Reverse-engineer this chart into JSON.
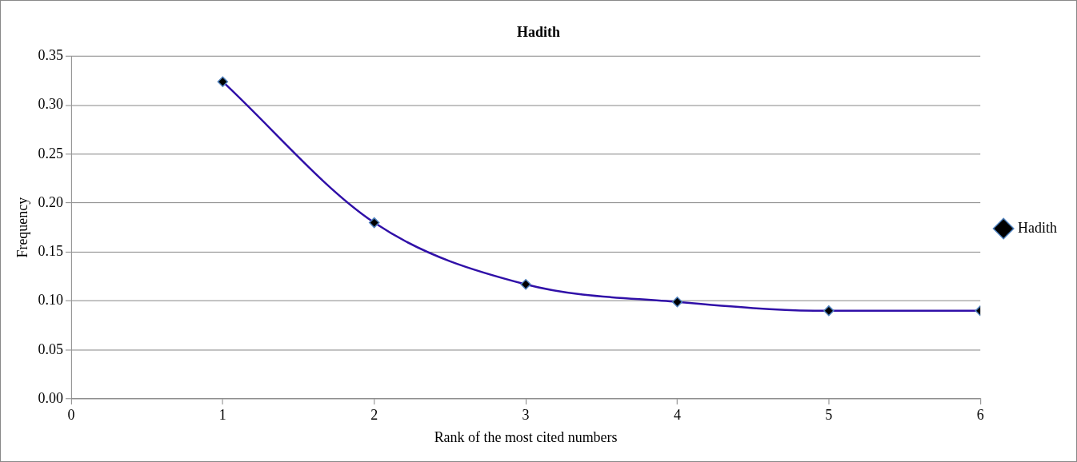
{
  "chart_data": {
    "type": "line",
    "title": "Hadith",
    "xlabel": "Rank of the most cited numbers",
    "ylabel": "Frequency",
    "x": [
      1,
      2,
      3,
      4,
      5,
      6
    ],
    "series": [
      {
        "name": "Hadith",
        "color": "#3010a8",
        "values": [
          0.324,
          0.18,
          0.117,
          0.099,
          0.09,
          0.09
        ]
      }
    ],
    "xlim": [
      0,
      6
    ],
    "xticks": [
      0,
      1,
      2,
      3,
      4,
      5,
      6
    ],
    "ylim": [
      0,
      0.35
    ],
    "yticks": [
      {
        "value": 0,
        "label": "0.00"
      },
      {
        "value": 0.05,
        "label": "0.05"
      },
      {
        "value": 0.1,
        "label": "0.10"
      },
      {
        "value": 0.15,
        "label": "0.15"
      },
      {
        "value": 0.2,
        "label": "0.20"
      },
      {
        "value": 0.25,
        "label": "0.25"
      },
      {
        "value": 0.3,
        "label": "0.30"
      },
      {
        "value": 0.35,
        "label": "0.35"
      }
    ],
    "grid": "y",
    "legend": "right",
    "marker": "diamond",
    "line_style": "solid"
  }
}
